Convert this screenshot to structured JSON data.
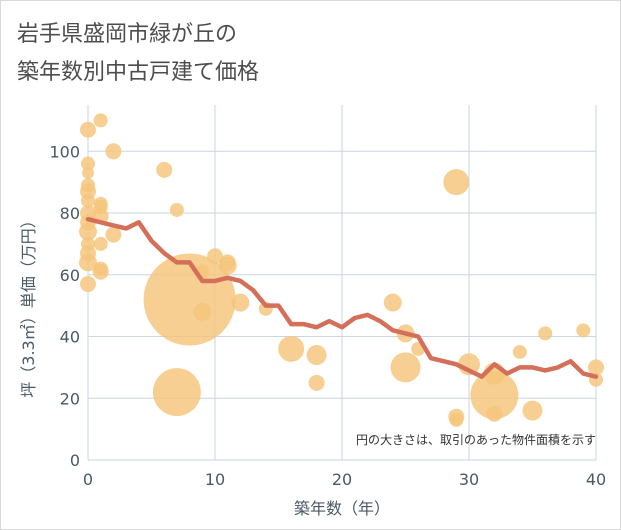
{
  "title_lines": [
    "岩手県盛岡市緑が丘の",
    "築年数別中古戸建て価格"
  ],
  "chart_data": {
    "type": "scatter",
    "xlabel": "築年数（年）",
    "ylabel": "坪（3.3㎡）単価（万円）",
    "xlim": [
      0,
      40
    ],
    "ylim": [
      0,
      115
    ],
    "x_ticks": [
      0,
      10,
      20,
      30,
      40
    ],
    "y_ticks": [
      0,
      20,
      40,
      60,
      80,
      100
    ],
    "grid": true,
    "annotation": "円の大きさは、取引のあった物件面積を示す",
    "colors": {
      "bubble": "#f5c57a",
      "line": "#d4705a",
      "grid": "#c9d6e3"
    },
    "bubbles": [
      {
        "x": 0,
        "y": 107,
        "size": 8
      },
      {
        "x": 0,
        "y": 96,
        "size": 7
      },
      {
        "x": 0,
        "y": 93,
        "size": 6
      },
      {
        "x": 0,
        "y": 89,
        "size": 7
      },
      {
        "x": 0,
        "y": 87,
        "size": 8
      },
      {
        "x": 0,
        "y": 84,
        "size": 7
      },
      {
        "x": 0,
        "y": 80,
        "size": 8
      },
      {
        "x": 0,
        "y": 77,
        "size": 8
      },
      {
        "x": 0,
        "y": 74,
        "size": 9
      },
      {
        "x": 0,
        "y": 70,
        "size": 7
      },
      {
        "x": 0,
        "y": 67,
        "size": 8
      },
      {
        "x": 0,
        "y": 64,
        "size": 9
      },
      {
        "x": 0,
        "y": 57,
        "size": 8
      },
      {
        "x": 1,
        "y": 110,
        "size": 7
      },
      {
        "x": 1,
        "y": 83,
        "size": 7
      },
      {
        "x": 1,
        "y": 82,
        "size": 7
      },
      {
        "x": 1,
        "y": 79,
        "size": 8
      },
      {
        "x": 1,
        "y": 70,
        "size": 7
      },
      {
        "x": 1,
        "y": 62,
        "size": 7
      },
      {
        "x": 1,
        "y": 61,
        "size": 8
      },
      {
        "x": 2,
        "y": 100,
        "size": 8
      },
      {
        "x": 2,
        "y": 73,
        "size": 8
      },
      {
        "x": 6,
        "y": 94,
        "size": 8
      },
      {
        "x": 7,
        "y": 81,
        "size": 7
      },
      {
        "x": 8,
        "y": 52,
        "size": 46
      },
      {
        "x": 7,
        "y": 22,
        "size": 24
      },
      {
        "x": 9,
        "y": 48,
        "size": 9
      },
      {
        "x": 9,
        "y": 61,
        "size": 7
      },
      {
        "x": 10,
        "y": 66,
        "size": 8
      },
      {
        "x": 11,
        "y": 64,
        "size": 8
      },
      {
        "x": 11,
        "y": 63,
        "size": 9
      },
      {
        "x": 12,
        "y": 51,
        "size": 9
      },
      {
        "x": 14,
        "y": 49,
        "size": 7
      },
      {
        "x": 16,
        "y": 36,
        "size": 13
      },
      {
        "x": 18,
        "y": 34,
        "size": 10
      },
      {
        "x": 18,
        "y": 25,
        "size": 8
      },
      {
        "x": 24,
        "y": 51,
        "size": 9
      },
      {
        "x": 25,
        "y": 41,
        "size": 9
      },
      {
        "x": 25,
        "y": 30,
        "size": 15
      },
      {
        "x": 26,
        "y": 36,
        "size": 7
      },
      {
        "x": 29,
        "y": 90,
        "size": 13
      },
      {
        "x": 29,
        "y": 14,
        "size": 8
      },
      {
        "x": 29,
        "y": 13,
        "size": 7
      },
      {
        "x": 30,
        "y": 31,
        "size": 11
      },
      {
        "x": 32,
        "y": 21,
        "size": 24
      },
      {
        "x": 32,
        "y": 28,
        "size": 11
      },
      {
        "x": 32,
        "y": 15,
        "size": 8
      },
      {
        "x": 34,
        "y": 35,
        "size": 7
      },
      {
        "x": 35,
        "y": 16,
        "size": 10
      },
      {
        "x": 36,
        "y": 41,
        "size": 7
      },
      {
        "x": 39,
        "y": 42,
        "size": 7
      },
      {
        "x": 40,
        "y": 30,
        "size": 8
      },
      {
        "x": 40,
        "y": 26,
        "size": 7
      }
    ],
    "line": {
      "x": [
        0,
        1,
        2,
        3,
        4,
        5,
        6,
        7,
        8,
        9,
        10,
        11,
        12,
        13,
        14,
        15,
        16,
        17,
        18,
        19,
        20,
        21,
        22,
        23,
        24,
        25,
        26,
        27,
        28,
        29,
        30,
        31,
        32,
        33,
        34,
        35,
        36,
        37,
        38,
        39,
        40
      ],
      "y": [
        78,
        77,
        76,
        75,
        77,
        71,
        67,
        64,
        64,
        58,
        58,
        59,
        58,
        55,
        50,
        50,
        44,
        44,
        43,
        45,
        43,
        46,
        47,
        45,
        42,
        41,
        40,
        33,
        32,
        31,
        29,
        27,
        31,
        28,
        30,
        30,
        29,
        30,
        32,
        28,
        27
      ]
    }
  }
}
